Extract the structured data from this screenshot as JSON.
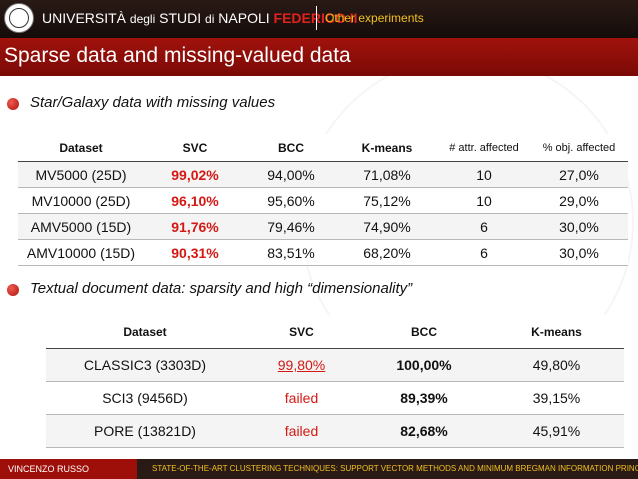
{
  "header": {
    "university_prefix": "UNIVERSITÀ",
    "university_mid": "degli",
    "university_studi": "STUDI",
    "university_di": "di",
    "university_napoli": "NAPOLI",
    "university_federico": "FEDERICO II",
    "section": "Other experiments"
  },
  "title": "Sparse data and missing-valued data",
  "bullet1": "Star/Galaxy data with missing values",
  "bullet2": "Textual document data: sparsity and high “dimensionality”",
  "table1": {
    "headers": [
      "Dataset",
      "SVC",
      "BCC",
      "K-means",
      "# attr. affected",
      "% obj. affected"
    ],
    "rows": [
      [
        "MV5000 (25D)",
        "99,02%",
        "94,00%",
        "71,08%",
        "10",
        "27,0%"
      ],
      [
        "MV10000 (25D)",
        "96,10%",
        "95,60%",
        "75,12%",
        "10",
        "29,0%"
      ],
      [
        "AMV5000 (15D)",
        "91,76%",
        "79,46%",
        "74,90%",
        "6",
        "30,0%"
      ],
      [
        "AMV10000 (15D)",
        "90,31%",
        "83,51%",
        "68,20%",
        "6",
        "30,0%"
      ]
    ]
  },
  "table2": {
    "headers": [
      "Dataset",
      "SVC",
      "BCC",
      "K-means"
    ],
    "rows": [
      [
        "CLASSIC3 (3303D)",
        "99,80%",
        "100,00%",
        "49,80%"
      ],
      [
        "SCI3 (9456D)",
        "failed",
        "89,39%",
        "39,15%"
      ],
      [
        "PORE (13821D)",
        "failed",
        "82,68%",
        "45,91%"
      ]
    ]
  },
  "footer": {
    "author": "VINCENZO RUSSO",
    "subtitle": "STATE-OF-THE-ART CLUSTERING TECHNIQUES: SUPPORT VECTOR METHODS AND MINIMUM BREGMAN INFORMATION PRINCIPLE"
  },
  "colors": {
    "accent_red": "#d41812",
    "title_bar": "#a1120c",
    "header_dark": "#1e1210",
    "section_gold": "#f0c020"
  },
  "icons": {
    "logo": "university-seal-icon",
    "bullet": "red-bullet-icon"
  }
}
